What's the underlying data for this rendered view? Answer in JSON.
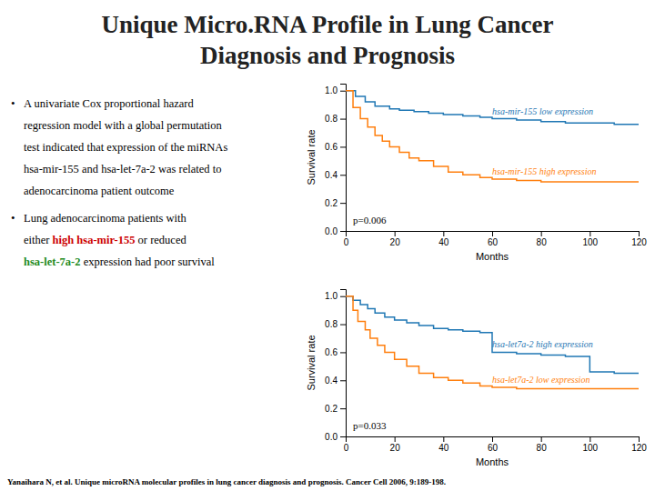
{
  "title": [
    "Unique Micro.RNA Profile in Lung Cancer",
    "Diagnosis and Prognosis"
  ],
  "bullet": "•",
  "text_blocks": [
    [
      [
        {
          "text": "A univariate Cox proportional hazard"
        }
      ],
      [
        {
          "text": "regression model with a global permutation"
        }
      ],
      [
        {
          "text": "test indicated that expression of the miRNAs"
        }
      ],
      [
        {
          "text": "hsa-mir-155 and hsa-let-7a-2 was related to"
        }
      ],
      [
        {
          "text": "adenocarcinoma patient outcome"
        }
      ]
    ],
    [
      [
        {
          "text": "Lung adenocarcinoma patients with"
        }
      ],
      [
        {
          "text": "either "
        },
        {
          "text": "high",
          "color": "#CC0000"
        },
        {
          "text": " hsa-mir-155",
          "color": "#CC0000"
        },
        {
          "text": " or reduced"
        }
      ],
      [
        {
          "text": "hsa-let-7a-2",
          "color": "#228B22"
        },
        {
          "text": " expression had poor survival"
        }
      ]
    ]
  ],
  "footnote": [
    {
      "text": "Yanaihara N,"
    },
    {
      "text": " et al."
    },
    {
      "text": " Unique microRNA molecular profiles in lung cancer diagnosis and prognosis."
    },
    {
      "text": " Cancer Cell"
    },
    {
      "text": " 2006, 9:189-198."
    }
  ],
  "chart_data": [
    {
      "type": "step",
      "xlabel": "Months",
      "ylabel": "Survival rate",
      "xlim": [
        0,
        120
      ],
      "xticks": [
        0,
        20,
        40,
        60,
        80,
        100,
        120
      ],
      "ylim": [
        0.0,
        1.05
      ],
      "yticks": [
        {
          "value": 0.0,
          "label": "0.0"
        },
        0.2,
        0.4,
        0.6,
        0.8,
        {
          "value": 1.0,
          "label": "1.0"
        }
      ],
      "annotations": [
        "p=0.006"
      ],
      "series": [
        {
          "name": "hsa-mir-155 low expression",
          "x": [
            0,
            4,
            8,
            12,
            18,
            22,
            28,
            34,
            40,
            48,
            55,
            60,
            70,
            80,
            90,
            100,
            110,
            120
          ],
          "values": [
            1.0,
            0.96,
            0.92,
            0.89,
            0.87,
            0.86,
            0.85,
            0.84,
            0.83,
            0.82,
            0.81,
            0.8,
            0.79,
            0.78,
            0.77,
            0.77,
            0.76,
            0.76
          ]
        },
        {
          "name": "hsa-mir-155 high expression",
          "x": [
            0,
            3,
            6,
            9,
            12,
            15,
            18,
            22,
            26,
            30,
            36,
            42,
            48,
            55,
            60,
            70,
            80,
            90,
            100,
            110,
            120
          ],
          "values": [
            1.0,
            0.88,
            0.8,
            0.74,
            0.68,
            0.64,
            0.6,
            0.56,
            0.52,
            0.5,
            0.46,
            0.42,
            0.4,
            0.38,
            0.37,
            0.36,
            0.35,
            0.35,
            0.35,
            0.35,
            0.35
          ]
        }
      ]
    },
    {
      "type": "step",
      "xlabel": "Months",
      "ylabel": "Survival rate",
      "xlim": [
        0,
        120
      ],
      "xticks": [
        0,
        20,
        40,
        60,
        80,
        100,
        120
      ],
      "ylim": [
        0.0,
        1.05
      ],
      "yticks": [
        {
          "value": 0.0,
          "label": "0.0"
        },
        0.2,
        0.4,
        0.6,
        0.8,
        {
          "value": 1.0,
          "label": "1.0"
        }
      ],
      "annotations": [
        "p=0.033"
      ],
      "series": [
        {
          "name": "hsa-let7a-2 high expression",
          "x": [
            0,
            3,
            6,
            9,
            12,
            16,
            20,
            25,
            30,
            36,
            42,
            48,
            55,
            60,
            70,
            80,
            90,
            100,
            110,
            120
          ],
          "values": [
            1.0,
            0.97,
            0.94,
            0.91,
            0.88,
            0.85,
            0.83,
            0.81,
            0.79,
            0.77,
            0.76,
            0.75,
            0.74,
            0.6,
            0.59,
            0.58,
            0.57,
            0.46,
            0.45,
            0.45
          ]
        },
        {
          "name": "hsa-let7a-2 low expression",
          "x": [
            0,
            3,
            5,
            8,
            10,
            13,
            16,
            20,
            25,
            30,
            36,
            42,
            48,
            55,
            60,
            70,
            80,
            90,
            100,
            110,
            120
          ],
          "values": [
            1.0,
            0.9,
            0.82,
            0.76,
            0.7,
            0.65,
            0.6,
            0.55,
            0.5,
            0.45,
            0.42,
            0.4,
            0.38,
            0.36,
            0.35,
            0.34,
            0.34,
            0.34,
            0.34,
            0.34,
            0.34
          ]
        }
      ]
    }
  ]
}
